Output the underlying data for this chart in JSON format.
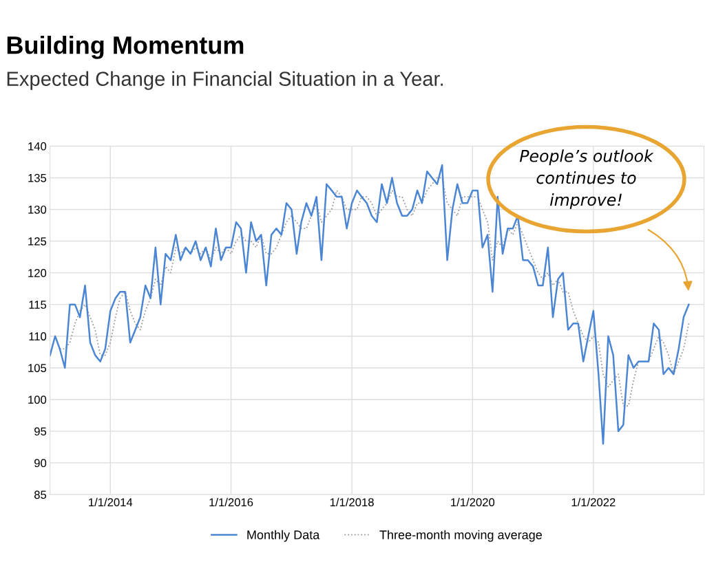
{
  "chart_data": {
    "type": "line",
    "title": "Building Momentum",
    "subtitle": "Expected Change in Financial Situation in a Year.",
    "x": [
      "2013-01",
      "2013-02",
      "2013-03",
      "2013-04",
      "2013-05",
      "2013-06",
      "2013-07",
      "2013-08",
      "2013-09",
      "2013-10",
      "2013-11",
      "2013-12",
      "2014-01",
      "2014-02",
      "2014-03",
      "2014-04",
      "2014-05",
      "2014-06",
      "2014-07",
      "2014-08",
      "2014-09",
      "2014-10",
      "2014-11",
      "2014-12",
      "2015-01",
      "2015-02",
      "2015-03",
      "2015-04",
      "2015-05",
      "2015-06",
      "2015-07",
      "2015-08",
      "2015-09",
      "2015-10",
      "2015-11",
      "2015-12",
      "2016-01",
      "2016-02",
      "2016-03",
      "2016-04",
      "2016-05",
      "2016-06",
      "2016-07",
      "2016-08",
      "2016-09",
      "2016-10",
      "2016-11",
      "2016-12",
      "2017-01",
      "2017-02",
      "2017-03",
      "2017-04",
      "2017-05",
      "2017-06",
      "2017-07",
      "2017-08",
      "2017-09",
      "2017-10",
      "2017-11",
      "2017-12",
      "2018-01",
      "2018-02",
      "2018-03",
      "2018-04",
      "2018-05",
      "2018-06",
      "2018-07",
      "2018-08",
      "2018-09",
      "2018-10",
      "2018-11",
      "2018-12",
      "2019-01",
      "2019-02",
      "2019-03",
      "2019-04",
      "2019-05",
      "2019-06",
      "2019-07",
      "2019-08",
      "2019-09",
      "2019-10",
      "2019-11",
      "2019-12",
      "2020-01",
      "2020-02",
      "2020-03",
      "2020-04",
      "2020-05",
      "2020-06",
      "2020-07",
      "2020-08",
      "2020-09",
      "2020-10",
      "2020-11",
      "2020-12",
      "2021-01",
      "2021-02",
      "2021-03",
      "2021-04",
      "2021-05",
      "2021-06",
      "2021-07",
      "2021-08",
      "2021-09",
      "2021-10",
      "2021-11",
      "2021-12",
      "2022-01",
      "2022-02",
      "2022-03",
      "2022-04",
      "2022-05",
      "2022-06",
      "2022-07",
      "2022-08",
      "2022-09",
      "2022-10",
      "2022-11",
      "2022-12",
      "2023-01",
      "2023-02",
      "2023-03",
      "2023-04",
      "2023-05",
      "2023-06",
      "2023-07",
      "2023-08"
    ],
    "series": [
      {
        "name": "Monthly Data",
        "color": "#4a86d4",
        "line_style": "solid",
        "values": [
          107,
          110,
          108,
          105,
          115,
          115,
          113,
          118,
          109,
          107,
          106,
          108,
          114,
          116,
          117,
          117,
          109,
          111,
          113,
          118,
          116,
          124,
          115,
          123,
          122,
          126,
          122,
          124,
          123,
          125,
          122,
          124,
          121,
          127,
          122,
          124,
          124,
          128,
          127,
          120,
          128,
          125,
          126,
          118,
          126,
          127,
          126,
          131,
          130,
          123,
          128,
          131,
          129,
          132,
          122,
          134,
          133,
          132,
          132,
          127,
          131,
          133,
          132,
          131,
          129,
          128,
          134,
          131,
          135,
          131,
          129,
          129,
          130,
          133,
          131,
          136,
          135,
          134,
          137,
          122,
          130,
          134,
          131,
          131,
          133,
          133,
          124,
          126,
          117,
          132,
          123,
          127,
          127,
          129,
          122,
          122,
          121,
          118,
          118,
          124,
          113,
          119,
          120,
          111,
          112,
          112,
          106,
          110,
          114,
          104,
          93,
          110,
          107,
          95,
          96,
          107,
          105,
          106,
          106,
          106,
          112,
          111,
          104,
          105,
          104,
          108,
          113,
          115
        ]
      },
      {
        "name": "Three-month moving average",
        "color": "#999999",
        "line_style": "dotted",
        "values": [
          null,
          null,
          108,
          108,
          109,
          112,
          114,
          115,
          113,
          111,
          107,
          107,
          109,
          113,
          116,
          117,
          114,
          112,
          111,
          114,
          116,
          119,
          118,
          121,
          120,
          124,
          123,
          124,
          123,
          124,
          123,
          124,
          122,
          124,
          123,
          124,
          123,
          125,
          126,
          125,
          125,
          124,
          126,
          123,
          123,
          124,
          126,
          128,
          129,
          128,
          127,
          127,
          129,
          131,
          128,
          129,
          130,
          133,
          132,
          130,
          130,
          130,
          132,
          132,
          131,
          129,
          130,
          131,
          133,
          132,
          132,
          130,
          129,
          131,
          131,
          133,
          134,
          135,
          135,
          131,
          130,
          129,
          132,
          132,
          132,
          132,
          130,
          128,
          122,
          125,
          124,
          127,
          126,
          128,
          126,
          124,
          122,
          120,
          119,
          120,
          118,
          119,
          117,
          117,
          114,
          112,
          110,
          109,
          110,
          109,
          104,
          102,
          103,
          104,
          99,
          99,
          103,
          106,
          106,
          106,
          108,
          110,
          109,
          107,
          104,
          106,
          108,
          112
        ]
      }
    ],
    "xlim": [
      "2013-01-01",
      "2023-11-01"
    ],
    "xticks": [
      {
        "value": "2014-01-01",
        "label": "1/1/2014"
      },
      {
        "value": "2016-01-01",
        "label": "1/1/2016"
      },
      {
        "value": "2018-01-01",
        "label": "1/1/2018"
      },
      {
        "value": "2020-01-01",
        "label": "1/1/2020"
      },
      {
        "value": "2022-01-01",
        "label": "1/1/2022"
      }
    ],
    "ylim": [
      85,
      140
    ],
    "yticks": [
      85,
      90,
      95,
      100,
      105,
      110,
      115,
      120,
      125,
      130,
      135,
      140
    ],
    "grid": true,
    "legend": "bottom",
    "marker": "none",
    "annotations": [
      "People’s outlook\ncontinues to\nimprove!"
    ]
  }
}
